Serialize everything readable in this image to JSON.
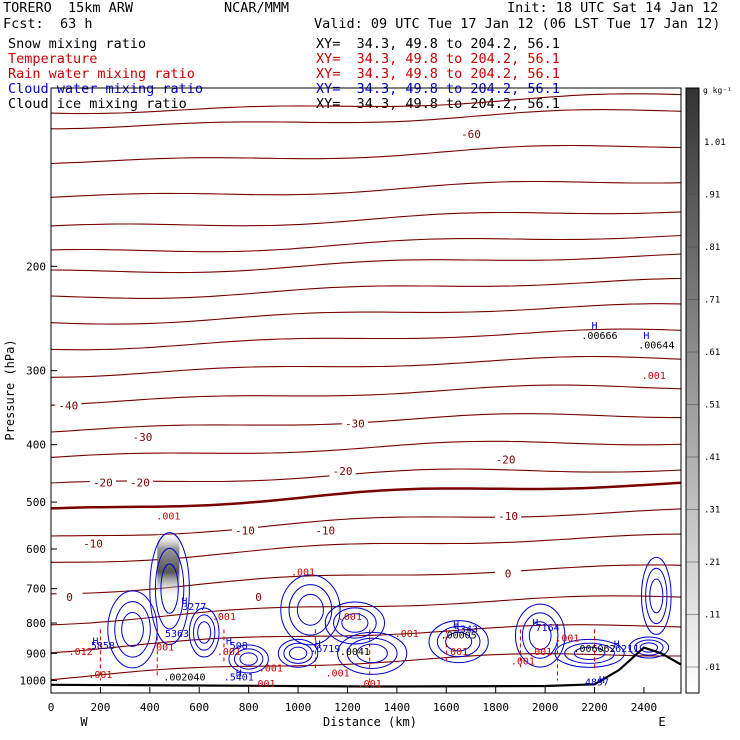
{
  "header": {
    "model": "TORERO  15km ARW",
    "fcst_label": "Fcst:",
    "fcst_value": "63 h",
    "org": "NCAR/MMM",
    "init": "Init: 18 UTC Sat 14 Jan 12",
    "valid": "Valid: 09 UTC Tue 17 Jan 12 (06 LST Tue 17 Jan 12)"
  },
  "fields": [
    {
      "name": "Snow mixing ratio",
      "xy": "XY=  34.3, 49.8 to 204.2, 56.1",
      "color": "#000000"
    },
    {
      "name": "Temperature",
      "xy": "XY=  34.3, 49.8 to 204.2, 56.1",
      "color": "#cc0000"
    },
    {
      "name": "Rain water mixing ratio",
      "xy": "XY=  34.3, 49.8 to 204.2, 56.1",
      "color": "#cc0000"
    },
    {
      "name": "Cloud water mixing ratio",
      "xy": "XY=  34.3, 49.8 to 204.2, 56.1",
      "color": "#0000cc"
    },
    {
      "name": "Cloud ice mixing ratio",
      "xy": "XY=  34.3, 49.8 to 204.2, 56.1",
      "color": "#000000"
    }
  ],
  "chart_data": {
    "type": "cross-section",
    "xlabel": "Distance (km)",
    "ylabel": "Pressure (hPa)",
    "xlim": [
      0,
      2550
    ],
    "ylim": [
      1050,
      100
    ],
    "y_log": true,
    "x_ticks": [
      0,
      200,
      400,
      600,
      800,
      1000,
      1200,
      1400,
      1600,
      1800,
      2000,
      2200,
      2400
    ],
    "y_ticks": [
      200,
      300,
      400,
      500,
      600,
      700,
      800,
      900,
      1000
    ],
    "left_end": "W",
    "right_end": "E",
    "colorbar": {
      "unit": "g kg⁻¹",
      "labels": [
        "1.01",
        ".91",
        ".81",
        ".71",
        ".61",
        ".51",
        ".41",
        ".31",
        ".21",
        ".11",
        ".01"
      ]
    },
    "temperature_contours": [
      {
        "label": "-60",
        "x": 1700,
        "p": 120
      },
      {
        "label": "-40",
        "x": 70,
        "p": 345
      },
      {
        "label": "-30",
        "x": 370,
        "p": 390
      },
      {
        "label": "-30",
        "x": 1230,
        "p": 370
      },
      {
        "label": "-20",
        "x": 210,
        "p": 465
      },
      {
        "label": "-20",
        "x": 360,
        "p": 465
      },
      {
        "label": "-20",
        "x": 1180,
        "p": 445
      },
      {
        "label": "-20",
        "x": 1840,
        "p": 425
      },
      {
        "label": "-10",
        "x": 170,
        "p": 590
      },
      {
        "label": "-10",
        "x": 785,
        "p": 560
      },
      {
        "label": "-10",
        "x": 1110,
        "p": 560
      },
      {
        "label": "-10",
        "x": 1850,
        "p": 530
      },
      {
        "label": "0",
        "x": 75,
        "p": 726
      },
      {
        "label": "0",
        "x": 840,
        "p": 726
      },
      {
        "label": "0",
        "x": 1850,
        "p": 662
      }
    ],
    "annotations": [
      {
        "text": "H",
        "x": 2200,
        "p": 255
      },
      {
        "text": ".00666",
        "x": 2220,
        "p": 265
      },
      {
        "text": "H",
        "x": 2410,
        "p": 265
      },
      {
        "text": ".00644",
        "x": 2450,
        "p": 275
      },
      {
        "text": ".001",
        "x": 2440,
        "p": 310
      },
      {
        "text": ".001",
        "x": 475,
        "p": 535
      },
      {
        "text": ".001",
        "x": 1020,
        "p": 665
      },
      {
        "text": "H",
        "x": 540,
        "p": 745
      },
      {
        "text": "3277",
        "x": 580,
        "p": 760
      },
      {
        "text": ".001",
        "x": 700,
        "p": 790
      },
      {
        "text": ".001",
        "x": 1210,
        "p": 790
      },
      {
        "text": "H",
        "x": 1960,
        "p": 810
      },
      {
        "text": "7164",
        "x": 2010,
        "p": 825
      },
      {
        "text": "H",
        "x": 1640,
        "p": 815
      },
      {
        "text": "5343",
        "x": 1680,
        "p": 830
      },
      {
        "text": "H",
        "x": 180,
        "p": 870
      },
      {
        "text": "5858",
        "x": 210,
        "p": 885
      },
      {
        "text": "H",
        "x": 720,
        "p": 870
      },
      {
        "text": "508",
        "x": 760,
        "p": 885
      },
      {
        "text": "H",
        "x": 1080,
        "p": 880
      },
      {
        "text": ".6719",
        "x": 1110,
        "p": 895
      },
      {
        "text": ".001",
        "x": 1440,
        "p": 845
      },
      {
        "text": ".001",
        "x": 2090,
        "p": 860
      },
      {
        "text": ".001",
        "x": 1980,
        "p": 905
      },
      {
        "text": "H",
        "x": 2290,
        "p": 880
      },
      {
        "text": ".6211",
        "x": 2320,
        "p": 895
      },
      {
        "text": "H",
        "x": 2230,
        "p": 1010
      },
      {
        "text": "4897",
        "x": 2210,
        "p": 1020
      },
      {
        "text": "H",
        "x": 760,
        "p": 985
      },
      {
        "text": ".5401",
        "x": 760,
        "p": 1000
      },
      {
        "text": ".001",
        "x": 450,
        "p": 890
      },
      {
        "text": "5363",
        "x": 510,
        "p": 845
      },
      {
        "text": ".012",
        "x": 120,
        "p": 905
      },
      {
        "text": ".001",
        "x": 200,
        "p": 990
      },
      {
        "text": ".001",
        "x": 720,
        "p": 905
      },
      {
        "text": ".001",
        "x": 890,
        "p": 965
      },
      {
        "text": ".001",
        "x": 860,
        "p": 1025
      },
      {
        "text": ".001",
        "x": 1160,
        "p": 985
      },
      {
        "text": ".001",
        "x": 1290,
        "p": 1025
      },
      {
        "text": ".001",
        "x": 1640,
        "p": 905
      },
      {
        "text": ".001",
        "x": 1910,
        "p": 940
      },
      {
        "text": ".006062",
        "x": 2200,
        "p": 895
      },
      {
        "text": ".0041",
        "x": 1230,
        "p": 905
      },
      {
        "text": ".00005",
        "x": 1650,
        "p": 850
      },
      {
        "text": ".002040",
        "x": 540,
        "p": 1000
      }
    ]
  }
}
